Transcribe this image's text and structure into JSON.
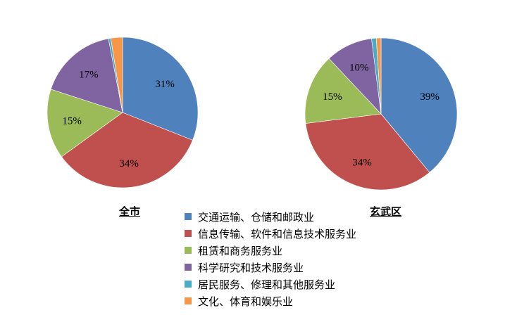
{
  "chart_data": [
    {
      "type": "pie",
      "title": "全市",
      "categories": [
        "交通运输、仓储和邮政业",
        "信息传输、软件和信息技术服务业",
        "租赁和商务服务业",
        "科学研究和技术服务业",
        "居民服务、修理和其他服务业",
        "文化、体育和娱乐业"
      ],
      "values": [
        31,
        34,
        15,
        17,
        0.5,
        2.5
      ],
      "labels": [
        "31%",
        "34%",
        "15%",
        "17%",
        "",
        ""
      ],
      "start": "12 o'clock",
      "direction": "clockwise"
    },
    {
      "type": "pie",
      "title": "玄武区",
      "categories": [
        "交通运输、仓储和邮政业",
        "信息传输、软件和信息技术服务业",
        "租赁和商务服务业",
        "科学研究和技术服务业",
        "居民服务、修理和其他服务业",
        "文化、体育和娱乐业"
      ],
      "values": [
        39,
        34,
        15,
        10,
        1,
        1
      ],
      "labels": [
        "39%",
        "34%",
        "15%",
        "10%",
        "",
        ""
      ],
      "start": "12 o'clock",
      "direction": "clockwise"
    }
  ],
  "legend": {
    "placement": "bottom-center",
    "items": [
      "交通运输、仓储和邮政业",
      "信息传输、软件和信息技术服务业",
      "租赁和商务服务业",
      "科学研究和技术服务业",
      "居民服务、修理和其他服务业",
      "文化、体育和娱乐业"
    ]
  },
  "colors": [
    "#4f81bd",
    "#c0504d",
    "#9bbb59",
    "#8064a2",
    "#4bacc6",
    "#f79646"
  ]
}
